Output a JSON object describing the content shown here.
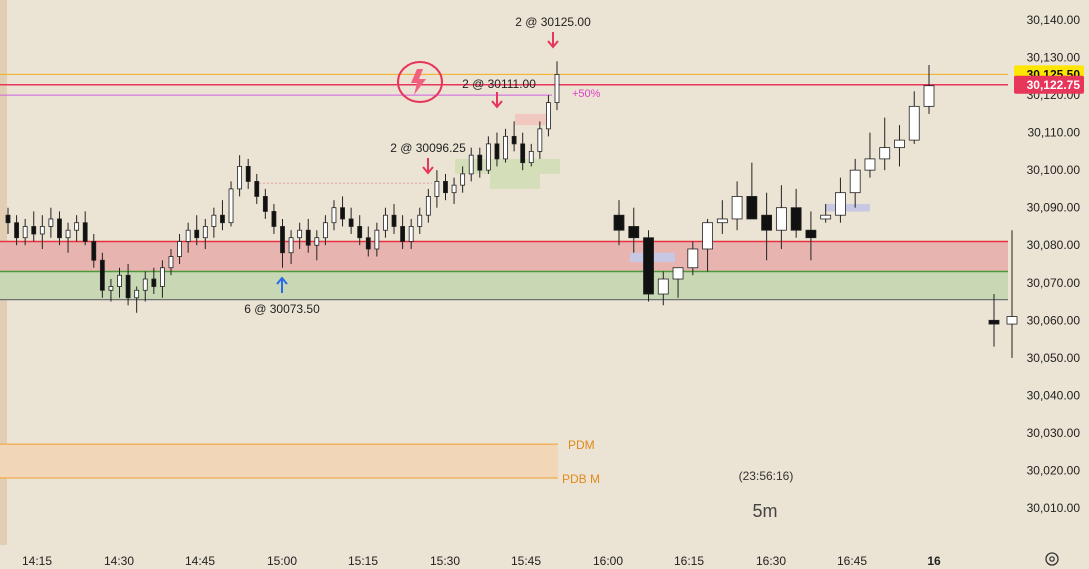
{
  "chart_data": {
    "type": "candlestick",
    "timeframe": "5m",
    "countdown": "(23:56:16)",
    "y_axis": {
      "min": 30005,
      "max": 30145,
      "ticks": [
        "30,140.00",
        "30,130.00",
        "30,120.00",
        "30,110.00",
        "30,100.00",
        "30,090.00",
        "30,080.00",
        "30,070.00",
        "30,060.00",
        "30,050.00",
        "30,040.00",
        "30,030.00",
        "30,020.00",
        "30,010.00"
      ],
      "tick_values": [
        30140,
        30130,
        30120,
        30110,
        30100,
        30090,
        30080,
        30070,
        30060,
        30050,
        30040,
        30030,
        30020,
        30010
      ]
    },
    "x_axis": {
      "ticks": [
        "14:15",
        "14:30",
        "14:45",
        "15:00",
        "15:15",
        "15:30",
        "15:45",
        "16:00",
        "16:15",
        "16:30",
        "16:45",
        "16"
      ]
    },
    "price_badges": [
      {
        "label": "30,125.50",
        "value": 30125.5,
        "bg": "#ffe600",
        "fg": "#111111"
      },
      {
        "label": "30,122.75",
        "value": 30122.75,
        "bg": "#e8355a",
        "fg": "#ffffff"
      }
    ],
    "annotations": [
      {
        "text": "2 @ 30125.00",
        "value": 30125.0,
        "direction": "down"
      },
      {
        "text": "2 @ 30111.00",
        "value": 30111.0,
        "direction": "down"
      },
      {
        "text": "2 @ 30096.25",
        "value": 30096.25,
        "direction": "down"
      },
      {
        "text": "6 @ 30073.50",
        "value": 30073.5,
        "direction": "up"
      }
    ],
    "pct_label": "+50%",
    "levels": [
      {
        "label": "PDM",
        "value": 30027,
        "color": "#f0a030"
      },
      {
        "label": "PDB M",
        "value": 30018,
        "color": "#f0a030"
      }
    ],
    "zones": [
      {
        "name": "red-zone",
        "from": 30073,
        "to": 30081,
        "color": "#e8b4b0"
      },
      {
        "name": "green-zone",
        "from": 30065.5,
        "to": 30073,
        "color": "#c8d8b4"
      }
    ],
    "horizontal_lines": [
      {
        "name": "yellow-line",
        "value": 30125.5,
        "color": "#f0b020"
      },
      {
        "name": "red-line",
        "value": 30122.75,
        "color": "#e8355a"
      },
      {
        "name": "magenta-line",
        "value": 30120,
        "color": "#d060e0"
      },
      {
        "name": "red-zone-top-line",
        "value": 30081,
        "color": "#e83040"
      },
      {
        "name": "green-line",
        "value": 30073,
        "color": "#4a9a3a"
      },
      {
        "name": "gray-line",
        "value": 30065.5,
        "color": "#707070"
      }
    ],
    "small_candles": [
      [
        30088,
        30090,
        30083,
        30086
      ],
      [
        30086,
        30088,
        30080,
        30082
      ],
      [
        30082,
        30087,
        30080,
        30085
      ],
      [
        30085,
        30089,
        30081,
        30083
      ],
      [
        30083,
        30088,
        30079,
        30085
      ],
      [
        30085,
        30090,
        30082,
        30087
      ],
      [
        30087,
        30089,
        30080,
        30082
      ],
      [
        30082,
        30086,
        30078,
        30084
      ],
      [
        30084,
        30088,
        30081,
        30086
      ],
      [
        30086,
        30089,
        30080,
        30081
      ],
      [
        30081,
        30083,
        30074,
        30076
      ],
      [
        30076,
        30078,
        30066,
        30068
      ],
      [
        30068,
        30071,
        30065,
        30069
      ],
      [
        30069,
        30074,
        30066,
        30072
      ],
      [
        30072,
        30075,
        30064,
        30066
      ],
      [
        30066,
        30069,
        30062,
        30068
      ],
      [
        30068,
        30073,
        30065,
        30071
      ],
      [
        30071,
        30074,
        30067,
        30069
      ],
      [
        30069,
        30076,
        30066,
        30074
      ],
      [
        30074,
        30079,
        30072,
        30077
      ],
      [
        30077,
        30083,
        30075,
        30081
      ],
      [
        30081,
        30086,
        30078,
        30084
      ],
      [
        30084,
        30088,
        30080,
        30082
      ],
      [
        30082,
        30087,
        30079,
        30085
      ],
      [
        30085,
        30090,
        30082,
        30088
      ],
      [
        30088,
        30092,
        30084,
        30086
      ],
      [
        30086,
        30097,
        30085,
        30095
      ],
      [
        30095,
        30104,
        30093,
        30101
      ],
      [
        30101,
        30103,
        30095,
        30097
      ],
      [
        30097,
        30099,
        30091,
        30093
      ],
      [
        30093,
        30095,
        30087,
        30089
      ],
      [
        30089,
        30091,
        30083,
        30085
      ],
      [
        30085,
        30087,
        30074,
        30078
      ],
      [
        30078,
        30084,
        30075,
        30082
      ],
      [
        30082,
        30086,
        30079,
        30084
      ],
      [
        30084,
        30087,
        30078,
        30080
      ],
      [
        30080,
        30084,
        30076,
        30082
      ],
      [
        30082,
        30088,
        30080,
        30086
      ],
      [
        30086,
        30092,
        30084,
        30090
      ],
      [
        30090,
        30093,
        30085,
        30087
      ],
      [
        30087,
        30090,
        30083,
        30085
      ],
      [
        30085,
        30088,
        30080,
        30082
      ],
      [
        30082,
        30085,
        30077,
        30079
      ],
      [
        30079,
        30086,
        30077,
        30084
      ],
      [
        30084,
        30090,
        30082,
        30088
      ],
      [
        30088,
        30091,
        30083,
        30085
      ],
      [
        30085,
        30088,
        30079,
        30081
      ],
      [
        30081,
        30087,
        30079,
        30085
      ],
      [
        30085,
        30090,
        30083,
        30088
      ],
      [
        30088,
        30095,
        30086,
        30093
      ],
      [
        30093,
        30100,
        30090,
        30097
      ],
      [
        30097,
        30099,
        30092,
        30094
      ],
      [
        30094,
        30098,
        30091,
        30096
      ],
      [
        30096,
        30101,
        30094,
        30099
      ],
      [
        30099,
        30106,
        30097,
        30104
      ],
      [
        30104,
        30106,
        30098,
        30100
      ],
      [
        30100,
        30109,
        30099,
        30107
      ],
      [
        30107,
        30110,
        30101,
        30103
      ],
      [
        30103,
        30111,
        30102,
        30109
      ],
      [
        30109,
        30113,
        30105,
        30107
      ],
      [
        30107,
        30110,
        30100,
        30102
      ],
      [
        30102,
        30107,
        30101,
        30105
      ],
      [
        30105,
        30113,
        30103,
        30111
      ],
      [
        30111,
        30120,
        30109,
        30118
      ],
      [
        30118,
        30129,
        30116,
        30125.5
      ]
    ],
    "large_candles": [
      [
        30088,
        30092,
        30080,
        30084
      ],
      [
        30085,
        30090,
        30078,
        30082
      ],
      [
        30082,
        30084,
        30065,
        30067
      ],
      [
        30067,
        30073,
        30064,
        30071
      ],
      [
        30071,
        30074,
        30066,
        30074
      ],
      [
        30074,
        30081,
        30072,
        30079
      ],
      [
        30079,
        30087,
        30073,
        30086
      ],
      [
        30086,
        30092,
        30083,
        30087
      ],
      [
        30087,
        30097,
        30084,
        30093
      ],
      [
        30093,
        30102,
        30087,
        30087
      ],
      [
        30088,
        30094,
        30076,
        30084
      ],
      [
        30084,
        30096,
        30079,
        30090
      ],
      [
        30090,
        30095,
        30082,
        30084
      ],
      [
        30084,
        30089,
        30076,
        30082
      ],
      [
        30087,
        30091,
        30086,
        30088
      ],
      [
        30088,
        30098,
        30086,
        30094
      ],
      [
        30094,
        30103,
        30090,
        30100
      ],
      [
        30100,
        30110,
        30098,
        30103
      ],
      [
        30103,
        30114,
        30100,
        30106
      ],
      [
        30106,
        30112,
        30101,
        30108
      ],
      [
        30108,
        30121,
        30107,
        30117
      ],
      [
        30117,
        30128,
        30115,
        30122.5
      ]
    ],
    "trailing_candles": [
      [
        30060,
        30067,
        30053,
        30059
      ],
      [
        30059,
        30084,
        30050,
        30061
      ]
    ]
  }
}
